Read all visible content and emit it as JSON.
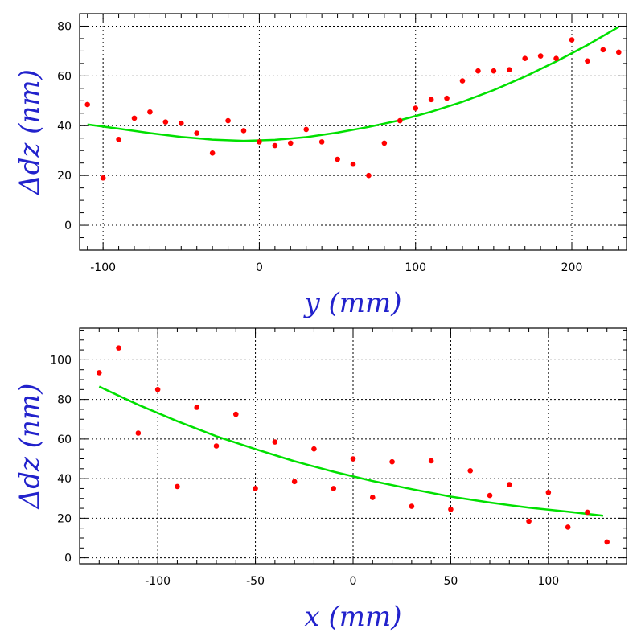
{
  "colors": {
    "points": "#ff0000",
    "fit": "#00e000",
    "axis_title": "#2222cc",
    "frame": "#000000"
  },
  "chart_data": [
    {
      "type": "scatter",
      "title": "",
      "xlabel": "y (mm)",
      "ylabel": "Δdz (nm)",
      "xlim": [
        -115,
        235
      ],
      "ylim": [
        -10,
        85
      ],
      "x_ticks": [
        -100,
        0,
        100,
        200
      ],
      "y_ticks": [
        0,
        20,
        40,
        60,
        80
      ],
      "grid": true,
      "series": [
        {
          "kind": "points",
          "x": [
            -110,
            -100,
            -90,
            -80,
            -70,
            -60,
            -50,
            -40,
            -30,
            -20,
            -10,
            0,
            10,
            20,
            30,
            40,
            50,
            60,
            70,
            80,
            90,
            100,
            110,
            120,
            130,
            140,
            150,
            160,
            170,
            180,
            190,
            200,
            210,
            220,
            230
          ],
          "y": [
            48.5,
            19,
            34.5,
            43,
            45.5,
            41.5,
            41,
            37,
            29,
            42,
            38,
            33.5,
            32,
            33,
            38.5,
            33.5,
            26.5,
            24.5,
            20,
            33,
            42,
            47,
            50.5,
            51,
            58,
            62,
            62,
            62.5,
            67,
            68,
            67,
            74.5,
            66,
            70.5,
            69.5
          ]
        },
        {
          "kind": "line",
          "x": [
            -110,
            -90,
            -70,
            -50,
            -30,
            -10,
            10,
            30,
            50,
            70,
            90,
            110,
            130,
            150,
            170,
            190,
            210,
            230
          ],
          "y": [
            40.5,
            38.8,
            37.0,
            35.5,
            34.4,
            33.9,
            34.3,
            35.4,
            37.2,
            39.5,
            42.2,
            45.6,
            49.6,
            54.3,
            59.7,
            65.8,
            72.4,
            79.7
          ]
        }
      ]
    },
    {
      "type": "scatter",
      "title": "",
      "xlabel": "x (mm)",
      "ylabel": "Δdz (nm)",
      "xlim": [
        -140,
        140
      ],
      "ylim": [
        -3,
        116
      ],
      "x_ticks": [
        -100,
        -50,
        0,
        50,
        100
      ],
      "y_ticks": [
        0,
        20,
        40,
        60,
        80,
        100
      ],
      "grid": true,
      "series": [
        {
          "kind": "points",
          "x": [
            -130,
            -120,
            -110,
            -100,
            -90,
            -80,
            -70,
            -60,
            -50,
            -40,
            -30,
            -20,
            -10,
            0,
            10,
            20,
            30,
            40,
            50,
            60,
            70,
            80,
            90,
            100,
            110,
            120,
            130
          ],
          "y": [
            93.5,
            106,
            63,
            85,
            36,
            76,
            56.5,
            72.5,
            35,
            58.5,
            38.5,
            55,
            35,
            50,
            30.5,
            48.5,
            26,
            49,
            24.5,
            44,
            31.5,
            37,
            18.5,
            33,
            15.5,
            23,
            8
          ]
        },
        {
          "kind": "line",
          "x": [
            -130,
            -110,
            -90,
            -70,
            -50,
            -30,
            -10,
            10,
            30,
            50,
            70,
            90,
            110,
            128
          ],
          "y": [
            86.5,
            77.3,
            69.0,
            61.4,
            54.9,
            48.8,
            43.5,
            38.8,
            34.7,
            30.9,
            27.9,
            25.3,
            23.3,
            21.3
          ]
        }
      ]
    }
  ]
}
